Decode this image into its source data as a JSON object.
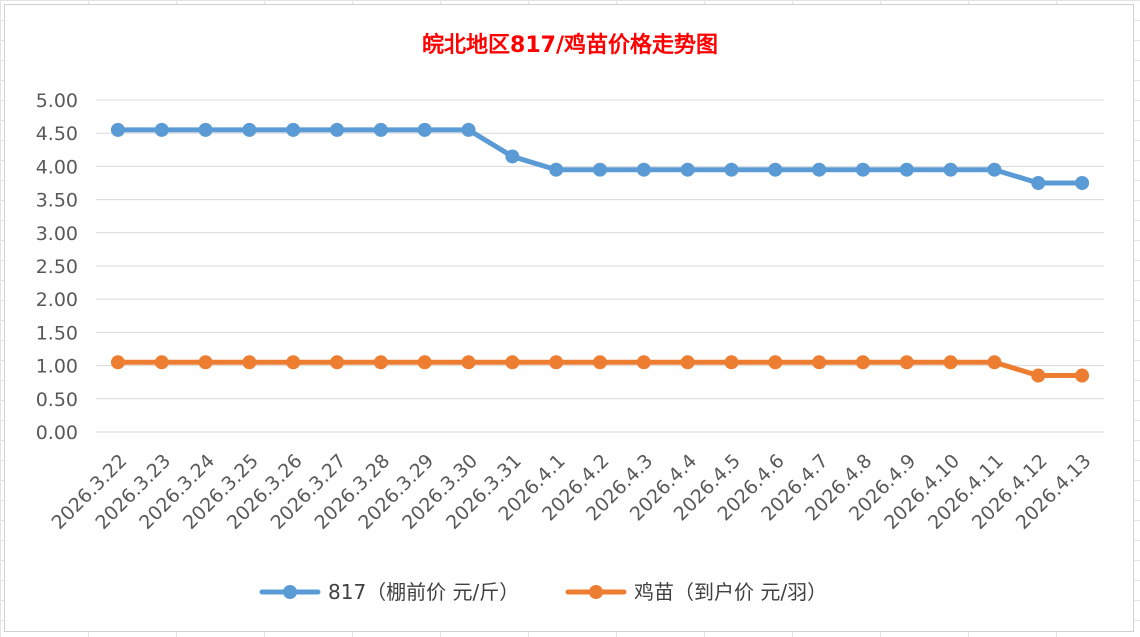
{
  "chart_data": {
    "type": "line",
    "title": "皖北地区817/鸡苗价格走势图",
    "xlabel": "",
    "ylabel": "",
    "ylim": [
      0,
      5
    ],
    "yticks": [
      "0.00",
      "0.50",
      "1.00",
      "1.50",
      "2.00",
      "2.50",
      "3.00",
      "3.50",
      "4.00",
      "4.50",
      "5.00"
    ],
    "grid": true,
    "legend_position": "bottom",
    "categories": [
      "2026.3.22",
      "2026.3.23",
      "2026.3.24",
      "2026.3.25",
      "2026.3.26",
      "2026.3.27",
      "2026.3.28",
      "2026.3.29",
      "2026.3.30",
      "2026.3.31",
      "2026.4.1",
      "2026.4.2",
      "2026.4.3",
      "2026.4.4",
      "2026.4.5",
      "2026.4.6",
      "2026.4.7",
      "2026.4.8",
      "2026.4.9",
      "2026.4.10",
      "2026.4.11",
      "2026.4.12",
      "2026.4.13"
    ],
    "series": [
      {
        "name": "817（棚前价 元/斤）",
        "color": "#5b9bd5",
        "values": [
          4.55,
          4.55,
          4.55,
          4.55,
          4.55,
          4.55,
          4.55,
          4.55,
          4.55,
          4.15,
          3.95,
          3.95,
          3.95,
          3.95,
          3.95,
          3.95,
          3.95,
          3.95,
          3.95,
          3.95,
          3.95,
          3.75,
          3.75
        ]
      },
      {
        "name": "鸡苗（到户价 元/羽）",
        "color": "#ed7d31",
        "values": [
          1.05,
          1.05,
          1.05,
          1.05,
          1.05,
          1.05,
          1.05,
          1.05,
          1.05,
          1.05,
          1.05,
          1.05,
          1.05,
          1.05,
          1.05,
          1.05,
          1.05,
          1.05,
          1.05,
          1.05,
          1.05,
          0.85,
          0.85
        ]
      }
    ]
  }
}
